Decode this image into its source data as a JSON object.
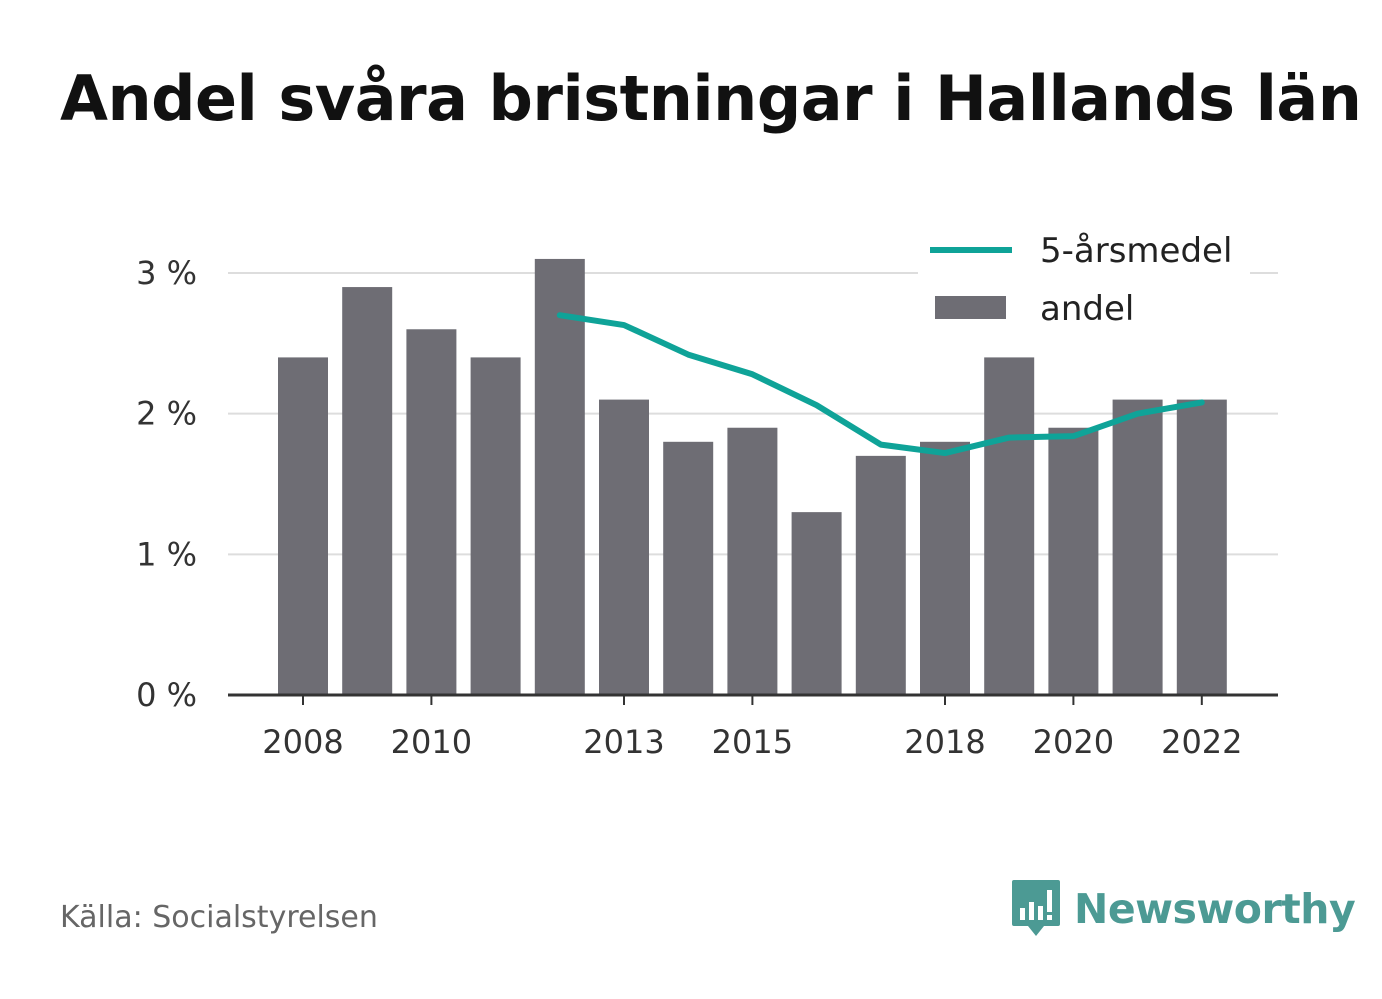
{
  "title": "Andel svåra bristningar i Hallands län",
  "source": "Källa: Socialstyrelsen",
  "brand": {
    "name": "Newsworthy",
    "icon": "newsworthy-logo-icon",
    "color": "#4c9a94"
  },
  "colors": {
    "bar": "#6e6d74",
    "line": "#0fa398",
    "grid": "#dddddd",
    "axis": "#333333"
  },
  "chart_data": {
    "type": "bar",
    "x": [
      2008,
      2009,
      2010,
      2011,
      2012,
      2013,
      2014,
      2015,
      2016,
      2017,
      2018,
      2019,
      2020,
      2021,
      2022
    ],
    "x_tick_labels": [
      "2008",
      "2010",
      "2013",
      "2015",
      "2018",
      "2020",
      "2022"
    ],
    "y_ticks": [
      0,
      1,
      2,
      3
    ],
    "y_tick_labels": [
      "0 %",
      "1 %",
      "2 %",
      "3 %"
    ],
    "ylim": [
      0,
      3.15
    ],
    "grid": true,
    "legend_position": "top-right",
    "series": [
      {
        "name": "andel",
        "type": "bar",
        "values": [
          2.4,
          2.9,
          2.6,
          2.4,
          3.1,
          2.1,
          1.8,
          1.9,
          1.3,
          1.7,
          1.8,
          2.4,
          1.9,
          2.1,
          2.1
        ]
      },
      {
        "name": "5-årsmedel",
        "type": "line",
        "values": [
          null,
          null,
          null,
          null,
          2.7,
          2.63,
          2.42,
          2.28,
          2.06,
          1.78,
          1.72,
          1.83,
          1.84,
          2.0,
          2.08
        ]
      }
    ]
  }
}
